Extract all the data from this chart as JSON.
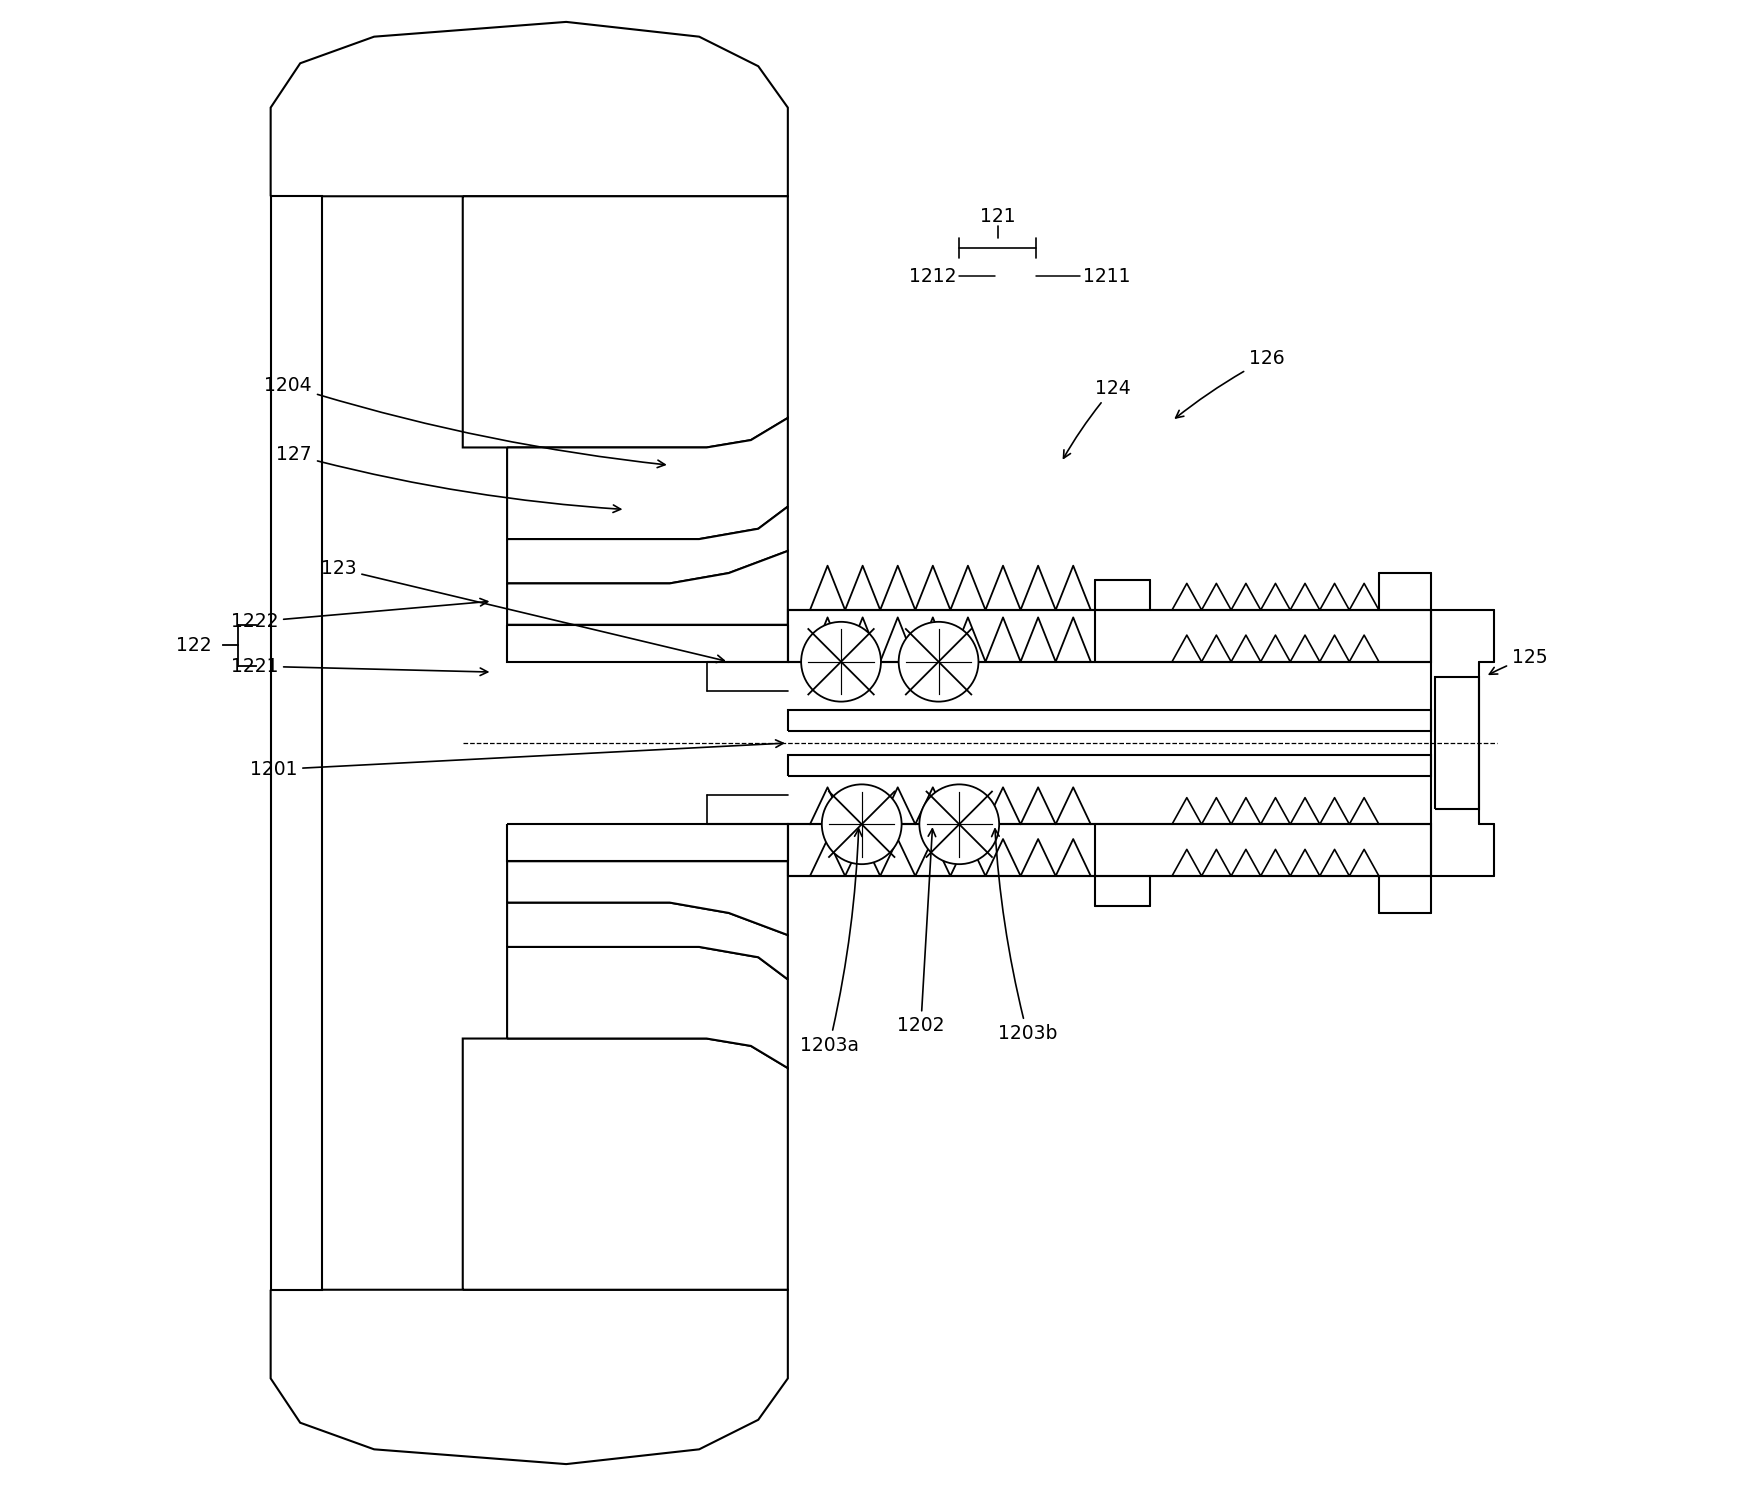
{
  "background": "#ffffff",
  "lc": "#000000",
  "figsize": [
    17.53,
    14.86
  ],
  "dpi": 100
}
